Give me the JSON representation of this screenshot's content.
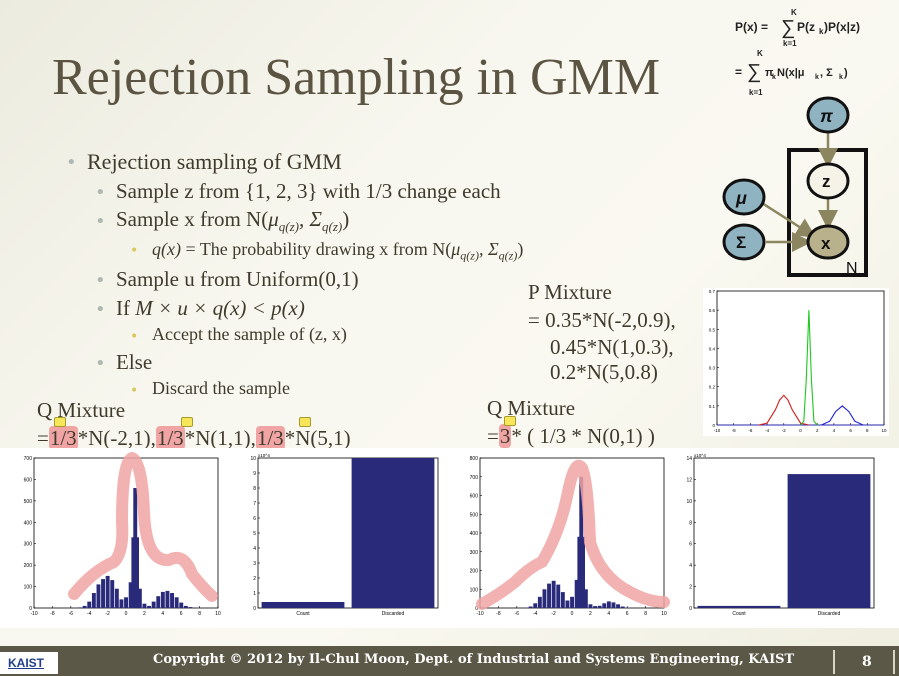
{
  "slide": {
    "title": "Rejection Sampling in GMM",
    "footer": "Copyright © 2012 by Il-Chul Moon, Dept. of Industrial and Systems Engineering, KAIST",
    "logo": "KAIST",
    "page_number": "8"
  },
  "bullets": {
    "b1": "Rejection sampling of GMM",
    "b2": "Sample z from {1, 2, 3} with 1/3 change each",
    "b3_pre": "Sample x from N(",
    "b3_mu": "μ",
    "b3_sub1": "q(z)",
    "b3_sig": ", Σ",
    "b3_sub2": "q(z)",
    "b3_post": ")",
    "b4_q": "q(x)",
    "b4_mid": " = The probability drawing x from N(",
    "b4_mu": "μ",
    "b4_sub1": "q(z)",
    "b4_sig": ", Σ",
    "b4_sub2": "q(z)",
    "b4_post": ")",
    "b5": "Sample u from Uniform(0,1)",
    "b6_if": "If ",
    "b6_expr": "M × u × q(x) < p(x)",
    "b7": "Accept the sample of (z, x)",
    "b8": "Else",
    "b9": "Discard the sample"
  },
  "p_mixture": {
    "label": "P Mixture",
    "line1": "= 0.35*N(-2,0.9),",
    "line2": "0.45*N(1,0.3),",
    "line3": "0.2*N(5,0.8)"
  },
  "q_mixture_left": {
    "label": "Q Mixture",
    "eq": "=",
    "w1": "1/3",
    "t1": "*N(-2,1),",
    "w2": "1/3",
    "t2": "*N(1,1),",
    "w3": "1/3",
    "t3": "*N(5,1)"
  },
  "q_mixture_right": {
    "label": "Q Mixture",
    "eq": "=",
    "w": "3",
    "t": "* ( 1/3 * N(0,1) )"
  },
  "formula": {
    "line1": "P(x) = Σ P(z_k)P(x|z)",
    "line2": "= Σ π_k N(x|μ_k, Σ_k)",
    "top_index": "K",
    "bottom_index": "k=1"
  },
  "graph_model": {
    "pi": "π",
    "z": "z",
    "mu": "μ",
    "sigma": "Σ",
    "x": "x",
    "plate": "N"
  },
  "colors": {
    "title": "#5c5442",
    "footer_bg": "#5c5847",
    "node_blue": "#8fb3c1",
    "node_tan": "#b9b08c",
    "highlight": "#f0a4a4",
    "bar": "#2a2a7a",
    "curve_red": "#d42020",
    "curve_green": "#1ec81e",
    "curve_blue": "#2020d4"
  },
  "chart_data": [
    {
      "type": "line",
      "title": "",
      "xlim": [
        -10,
        10
      ],
      "ylim": [
        0,
        0.7
      ],
      "xticks": [
        "-10",
        "-8",
        "-6",
        "-4",
        "-2",
        "0",
        "2",
        "4",
        "6",
        "8",
        "10"
      ],
      "yticks": [
        "0",
        "0.1",
        "0.2",
        "0.3",
        "0.4",
        "0.5",
        "0.6",
        "0.7"
      ],
      "series": [
        {
          "color": "red",
          "x": [
            -5,
            -4,
            -3,
            -2.5,
            -2,
            -1.5,
            -1,
            0,
            1
          ],
          "y": [
            0,
            0.01,
            0.08,
            0.13,
            0.155,
            0.13,
            0.08,
            0.01,
            0
          ]
        },
        {
          "color": "green",
          "x": [
            0,
            0.4,
            0.7,
            1,
            1.3,
            1.6,
            2
          ],
          "y": [
            0,
            0.02,
            0.24,
            0.6,
            0.24,
            0.02,
            0
          ]
        },
        {
          "color": "blue",
          "x": [
            2.5,
            3.5,
            4.2,
            5,
            5.8,
            6.5,
            7.5
          ],
          "y": [
            0,
            0.02,
            0.07,
            0.1,
            0.07,
            0.02,
            0
          ]
        }
      ]
    },
    {
      "type": "bar",
      "title": "",
      "xlim": [
        -10,
        10
      ],
      "ylim": [
        0,
        700
      ],
      "xticks": [
        "-10",
        "-8",
        "-6",
        "-4",
        "-2",
        "0",
        "2",
        "4",
        "6",
        "8",
        "10"
      ],
      "yticks": [
        "0",
        "100",
        "200",
        "300",
        "400",
        "500",
        "600",
        "700"
      ],
      "x": [
        -5,
        -4.5,
        -4,
        -3.5,
        -3,
        -2.5,
        -2,
        -1.5,
        -1,
        -0.5,
        0,
        0.5,
        0.8,
        1,
        1.2,
        1.5,
        2,
        2.5,
        3,
        3.5,
        4,
        4.5,
        5,
        5.5,
        6,
        6.5,
        7,
        7.5
      ],
      "values": [
        3,
        10,
        30,
        70,
        110,
        135,
        150,
        130,
        90,
        40,
        50,
        120,
        330,
        560,
        330,
        90,
        20,
        10,
        30,
        55,
        75,
        80,
        70,
        50,
        25,
        10,
        4,
        1
      ]
    },
    {
      "type": "bar",
      "title": "",
      "categories": [
        "Count",
        "Discarded"
      ],
      "values": [
        4000,
        100000
      ],
      "ylim": [
        0,
        100000
      ],
      "yticks": [
        "0",
        "1",
        "2",
        "3",
        "4",
        "5",
        "6",
        "7",
        "8",
        "9",
        "10"
      ],
      "y_exponent": "x10^4"
    },
    {
      "type": "bar",
      "title": "",
      "xlim": [
        -10,
        10
      ],
      "ylim": [
        0,
        800
      ],
      "xticks": [
        "-10",
        "-8",
        "-6",
        "-4",
        "-2",
        "0",
        "2",
        "4",
        "6",
        "8",
        "10"
      ],
      "yticks": [
        "0",
        "100",
        "200",
        "300",
        "400",
        "500",
        "600",
        "700",
        "800"
      ],
      "x": [
        -5,
        -4.5,
        -4,
        -3.5,
        -3,
        -2.5,
        -2,
        -1.5,
        -1,
        -0.5,
        0,
        0.5,
        0.8,
        1,
        1.2,
        1.5,
        2,
        2.5,
        3,
        3.5,
        4,
        4.5,
        5,
        5.5,
        6
      ],
      "values": [
        2,
        8,
        25,
        60,
        100,
        130,
        145,
        125,
        85,
        40,
        60,
        150,
        380,
        700,
        380,
        100,
        20,
        10,
        12,
        25,
        35,
        30,
        20,
        8,
        2
      ]
    },
    {
      "type": "bar",
      "title": "",
      "categories": [
        "Count",
        "Discarded"
      ],
      "values": [
        2000,
        125000
      ],
      "ylim": [
        0,
        140000
      ],
      "yticks": [
        "0",
        "2",
        "4",
        "6",
        "8",
        "10",
        "12",
        "14"
      ],
      "y_exponent": "x10^4"
    }
  ]
}
